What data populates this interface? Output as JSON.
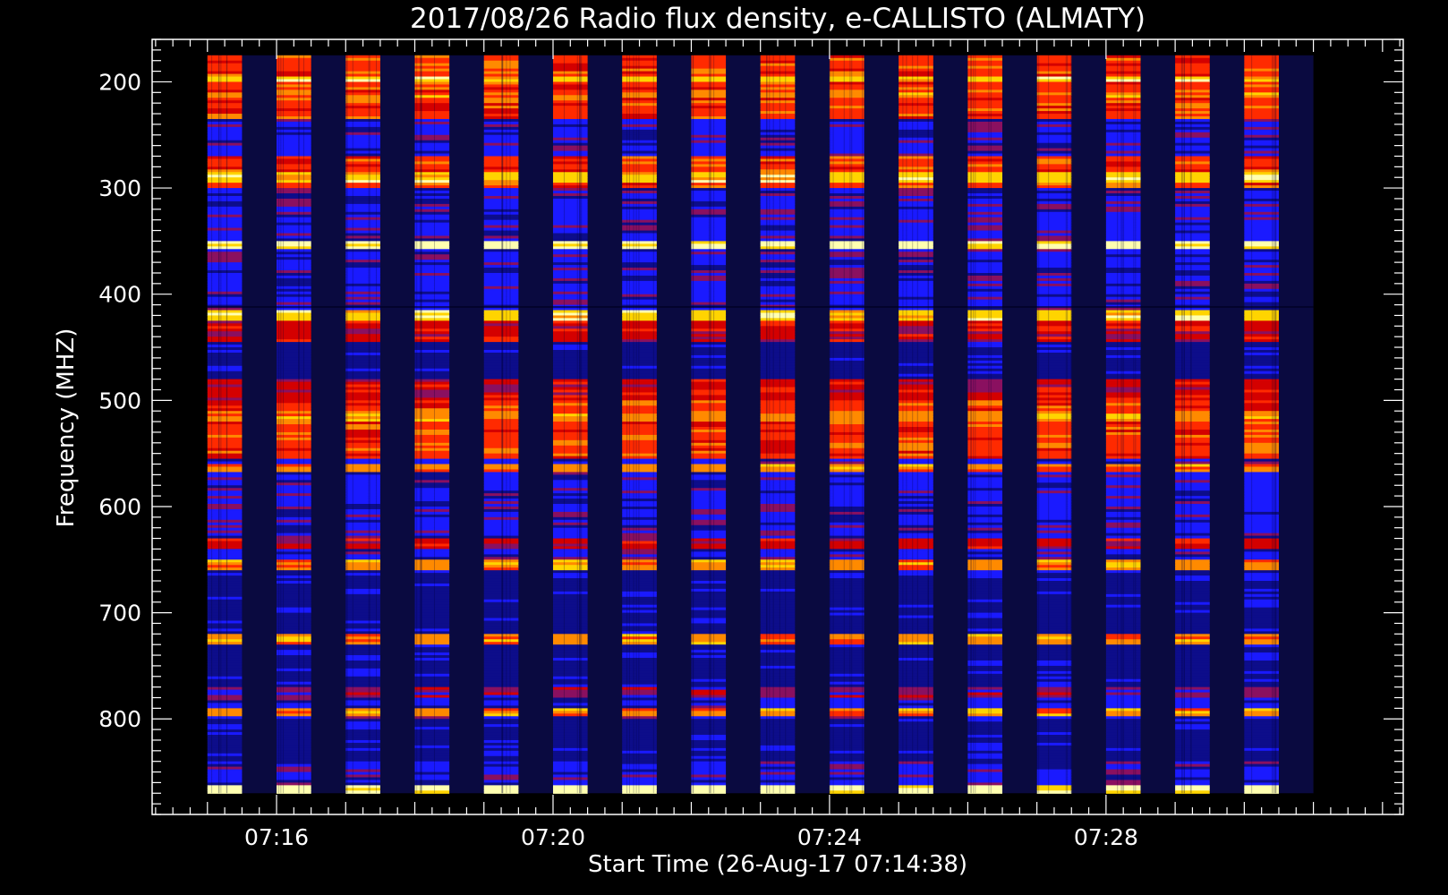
{
  "chart_data": {
    "type": "heatmap",
    "title": "2017/08/26  Radio flux density, e-CALLISTO (ALMATY)",
    "xlabel": "Start Time (26-Aug-17 07:14:38)",
    "ylabel": "Frequency (MHZ)",
    "x_tick_labels": [
      "07:16",
      "07:20",
      "07:24",
      "07:28"
    ],
    "x_tick_minutes": [
      16,
      20,
      24,
      28
    ],
    "x_range_minutes": [
      14.2,
      32.3
    ],
    "data_x_range_minutes": [
      15.0,
      31.0
    ],
    "y_tick_values": [
      200,
      300,
      400,
      500,
      600,
      700,
      800
    ],
    "y_range_mhz": [
      160,
      890
    ],
    "data_y_range_mhz": [
      175,
      870
    ],
    "y_inverted": true,
    "y_minor_step_mhz": 10,
    "x_minor_step_minutes": 0.25,
    "colormap": [
      "#0a0a40",
      "#0d0d8a",
      "#1a1aff",
      "#8a1060",
      "#d40000",
      "#ff2a00",
      "#ff8a00",
      "#ffd400",
      "#ffffb0"
    ],
    "active_columns_minutes": [
      [
        15.0,
        15.5
      ],
      [
        16.0,
        16.5
      ],
      [
        17.0,
        17.5
      ],
      [
        18.0,
        18.5
      ],
      [
        19.0,
        19.5
      ],
      [
        20.0,
        20.5
      ],
      [
        21.0,
        21.5
      ],
      [
        22.0,
        22.5
      ],
      [
        23.0,
        23.5
      ],
      [
        24.0,
        24.5
      ],
      [
        25.0,
        25.5
      ],
      [
        26.0,
        26.5
      ],
      [
        27.0,
        27.5
      ],
      [
        28.0,
        28.5
      ],
      [
        29.0,
        29.5
      ],
      [
        30.0,
        30.5
      ]
    ],
    "frequency_bands": [
      {
        "from": 175,
        "to": 235,
        "level": 5
      },
      {
        "from": 195,
        "to": 200,
        "level": 7
      },
      {
        "from": 210,
        "to": 215,
        "level": 6
      },
      {
        "from": 235,
        "to": 270,
        "level": 2
      },
      {
        "from": 270,
        "to": 300,
        "level": 5
      },
      {
        "from": 285,
        "to": 295,
        "level": 7
      },
      {
        "from": 300,
        "to": 345,
        "level": 2
      },
      {
        "from": 348,
        "to": 356,
        "level": 8
      },
      {
        "from": 356,
        "to": 410,
        "level": 2
      },
      {
        "from": 415,
        "to": 425,
        "level": 7
      },
      {
        "from": 425,
        "to": 445,
        "level": 4
      },
      {
        "from": 445,
        "to": 480,
        "level": 1
      },
      {
        "from": 480,
        "to": 500,
        "level": 4
      },
      {
        "from": 500,
        "to": 555,
        "level": 5
      },
      {
        "from": 510,
        "to": 520,
        "level": 6
      },
      {
        "from": 558,
        "to": 566,
        "level": 6
      },
      {
        "from": 566,
        "to": 630,
        "level": 2
      },
      {
        "from": 630,
        "to": 640,
        "level": 4
      },
      {
        "from": 650,
        "to": 660,
        "level": 6
      },
      {
        "from": 660,
        "to": 720,
        "level": 1
      },
      {
        "from": 720,
        "to": 730,
        "level": 6
      },
      {
        "from": 730,
        "to": 770,
        "level": 1
      },
      {
        "from": 770,
        "to": 780,
        "level": 3
      },
      {
        "from": 790,
        "to": 797,
        "level": 6
      },
      {
        "from": 800,
        "to": 840,
        "level": 1
      },
      {
        "from": 840,
        "to": 850,
        "level": 2
      },
      {
        "from": 862,
        "to": 870,
        "level": 8
      }
    ]
  }
}
